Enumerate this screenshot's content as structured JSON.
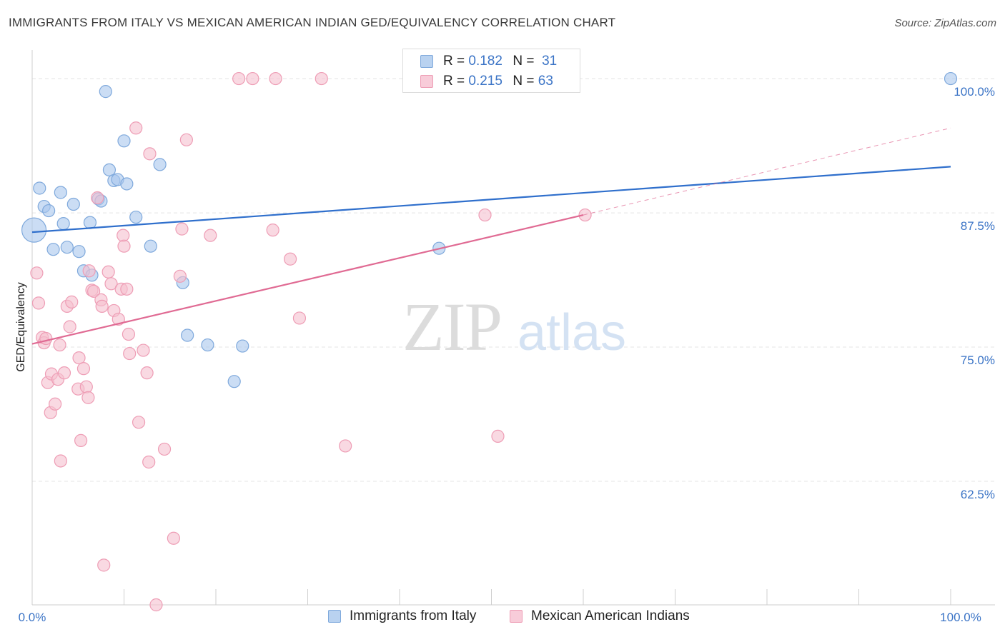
{
  "title": "IMMIGRANTS FROM ITALY VS MEXICAN AMERICAN INDIAN GED/EQUIVALENCY CORRELATION CHART",
  "source": "Source: ZipAtlas.com",
  "watermark": {
    "zip": "ZIP",
    "atlas": "atlas"
  },
  "legend": {
    "r_label": "R =",
    "n_label": "N =",
    "rows": [
      {
        "r": "0.182",
        "n": "31"
      },
      {
        "r": "0.215",
        "n": "63"
      }
    ]
  },
  "colors": {
    "blue_fill": "#a9c7ec",
    "blue_stroke": "#7fa9dc",
    "blue_line": "#2f6fcc",
    "pink_fill": "#f5c0cf",
    "pink_stroke": "#ee9db5",
    "pink_line": "#e06a93",
    "tick_text": "#3b74c6",
    "grid": "#e4e4e4"
  },
  "chart_data": {
    "type": "scatter",
    "title": "IMMIGRANTS FROM ITALY VS MEXICAN AMERICAN INDIAN GED/EQUIVALENCY CORRELATION CHART",
    "xlabel": "",
    "ylabel": "GED/Equivalency",
    "xlim": [
      0,
      100
    ],
    "ylim": [
      51,
      102
    ],
    "x_tick_labels": [
      "0.0%",
      "100.0%"
    ],
    "y_ticks": [
      100,
      87.5,
      75,
      62.5
    ],
    "y_tick_labels": [
      "100.0%",
      "87.5%",
      "75.0%",
      "62.5%"
    ],
    "grid": true,
    "series": [
      {
        "name": "Immigrants from Italy",
        "color": "blue",
        "R": 0.182,
        "N": 31,
        "trend": {
          "x0": 0,
          "y0": 85.7,
          "x1": 100,
          "y1": 91.8
        },
        "points": [
          [
            0.2,
            85.9,
            "large"
          ],
          [
            0.8,
            89.8
          ],
          [
            1.3,
            88.1
          ],
          [
            1.8,
            87.7
          ],
          [
            2.3,
            84.1
          ],
          [
            3.1,
            89.4
          ],
          [
            3.4,
            86.5
          ],
          [
            3.8,
            84.3
          ],
          [
            4.5,
            88.3
          ],
          [
            5.1,
            83.9
          ],
          [
            5.6,
            82.1
          ],
          [
            6.3,
            86.6
          ],
          [
            6.5,
            81.7
          ],
          [
            7.2,
            88.8
          ],
          [
            7.5,
            88.6
          ],
          [
            8.0,
            98.8
          ],
          [
            8.4,
            91.5
          ],
          [
            8.9,
            90.5
          ],
          [
            9.3,
            90.6
          ],
          [
            10.0,
            94.2
          ],
          [
            10.3,
            90.2
          ],
          [
            11.3,
            87.1
          ],
          [
            12.9,
            84.4
          ],
          [
            13.9,
            92.0
          ],
          [
            16.4,
            81.0
          ],
          [
            16.9,
            76.1
          ],
          [
            19.1,
            75.2
          ],
          [
            22.0,
            71.8
          ],
          [
            22.9,
            75.1
          ],
          [
            44.3,
            84.2
          ],
          [
            100.0,
            100.0
          ]
        ]
      },
      {
        "name": "Mexican American Indians",
        "color": "pink",
        "R": 0.215,
        "N": 63,
        "trend": {
          "x0": 0,
          "y0": 75.3,
          "x1": 60,
          "y1": 87.3
        },
        "trend_extension": {
          "x0": 60,
          "y0": 87.3,
          "x1": 100,
          "y1": 95.4
        },
        "points": [
          [
            0.5,
            81.9
          ],
          [
            0.7,
            79.1
          ],
          [
            1.1,
            75.9
          ],
          [
            1.3,
            75.4
          ],
          [
            1.5,
            75.8
          ],
          [
            1.7,
            71.7
          ],
          [
            2.0,
            68.9
          ],
          [
            2.1,
            72.5
          ],
          [
            2.5,
            69.7
          ],
          [
            2.8,
            72.0
          ],
          [
            3.0,
            75.2
          ],
          [
            3.1,
            64.4
          ],
          [
            3.5,
            72.6
          ],
          [
            3.8,
            78.8
          ],
          [
            4.1,
            76.9
          ],
          [
            4.3,
            79.2
          ],
          [
            5.0,
            71.1
          ],
          [
            5.1,
            74.0
          ],
          [
            5.3,
            66.3
          ],
          [
            5.6,
            73.0
          ],
          [
            5.9,
            71.3
          ],
          [
            6.1,
            70.3
          ],
          [
            6.2,
            82.1
          ],
          [
            6.5,
            80.3
          ],
          [
            6.7,
            80.2
          ],
          [
            7.1,
            88.9
          ],
          [
            7.5,
            79.4
          ],
          [
            7.6,
            78.8
          ],
          [
            7.8,
            54.7
          ],
          [
            8.3,
            82.0
          ],
          [
            8.6,
            80.9
          ],
          [
            8.9,
            78.4
          ],
          [
            9.4,
            77.6
          ],
          [
            9.7,
            80.4
          ],
          [
            9.9,
            85.4
          ],
          [
            10.0,
            84.4
          ],
          [
            10.3,
            80.4
          ],
          [
            10.5,
            76.2
          ],
          [
            10.6,
            74.4
          ],
          [
            11.3,
            95.4
          ],
          [
            11.6,
            68.0
          ],
          [
            12.1,
            74.7
          ],
          [
            12.5,
            72.6
          ],
          [
            12.7,
            64.3
          ],
          [
            12.8,
            93.0
          ],
          [
            13.5,
            51.0
          ],
          [
            14.4,
            65.5
          ],
          [
            15.4,
            57.2
          ],
          [
            16.1,
            81.6
          ],
          [
            16.3,
            86.0
          ],
          [
            16.8,
            94.3
          ],
          [
            19.4,
            85.4
          ],
          [
            22.5,
            100.0
          ],
          [
            24.0,
            100.0
          ],
          [
            26.2,
            85.9
          ],
          [
            26.5,
            100.0
          ],
          [
            28.1,
            83.2
          ],
          [
            29.1,
            77.7
          ],
          [
            31.5,
            100.0
          ],
          [
            34.1,
            65.8
          ],
          [
            49.3,
            87.3
          ],
          [
            50.7,
            66.7
          ],
          [
            60.2,
            87.3
          ]
        ]
      }
    ]
  }
}
